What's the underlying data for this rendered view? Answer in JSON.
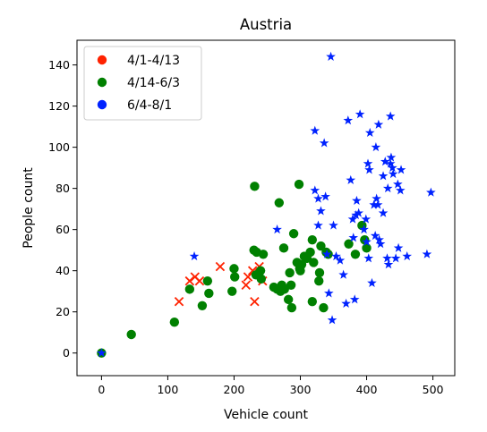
{
  "chart_data": {
    "type": "scatter",
    "title": "Austria",
    "xlabel": "Vehicle count",
    "ylabel": "People count",
    "xlim": [
      -37,
      533
    ],
    "ylim": [
      -11,
      152
    ],
    "xticks": [
      0,
      100,
      200,
      300,
      400,
      500
    ],
    "yticks": [
      0,
      20,
      40,
      60,
      80,
      100,
      120,
      140
    ],
    "grid": false,
    "legend_position": "top-left",
    "series": [
      {
        "name": "4/1-4/13",
        "color": "#ff2200",
        "marker": "x",
        "legend_marker": "circle",
        "points": [
          [
            117,
            25
          ],
          [
            133,
            35
          ],
          [
            141,
            37
          ],
          [
            148,
            35
          ],
          [
            179,
            42
          ],
          [
            218,
            33
          ],
          [
            221,
            37
          ],
          [
            228,
            40
          ],
          [
            231,
            25
          ],
          [
            238,
            42
          ],
          [
            243,
            35
          ]
        ]
      },
      {
        "name": "4/14-6/3",
        "color": "#008000",
        "marker": "circle",
        "legend_marker": "circle",
        "points": [
          [
            0,
            0
          ],
          [
            45,
            9
          ],
          [
            110,
            15
          ],
          [
            133,
            31
          ],
          [
            152,
            23
          ],
          [
            160,
            35
          ],
          [
            162,
            29
          ],
          [
            197,
            30
          ],
          [
            200,
            41
          ],
          [
            201,
            37
          ],
          [
            230,
            50
          ],
          [
            231,
            81
          ],
          [
            233,
            38
          ],
          [
            234,
            49
          ],
          [
            240,
            40
          ],
          [
            241,
            36
          ],
          [
            244,
            48
          ],
          [
            260,
            32
          ],
          [
            265,
            31
          ],
          [
            268,
            73
          ],
          [
            270,
            30
          ],
          [
            272,
            33
          ],
          [
            275,
            51
          ],
          [
            276,
            31
          ],
          [
            282,
            26
          ],
          [
            284,
            39
          ],
          [
            286,
            33
          ],
          [
            287,
            22
          ],
          [
            290,
            58
          ],
          [
            295,
            44
          ],
          [
            298,
            82
          ],
          [
            299,
            41
          ],
          [
            300,
            40
          ],
          [
            302,
            43
          ],
          [
            306,
            47
          ],
          [
            310,
            46
          ],
          [
            315,
            49
          ],
          [
            318,
            25
          ],
          [
            318,
            55
          ],
          [
            320,
            44
          ],
          [
            328,
            35
          ],
          [
            329,
            39
          ],
          [
            331,
            52
          ],
          [
            335,
            22
          ],
          [
            339,
            49
          ],
          [
            342,
            48
          ],
          [
            373,
            53
          ],
          [
            383,
            48
          ],
          [
            393,
            62
          ],
          [
            397,
            55
          ],
          [
            400,
            51
          ]
        ]
      },
      {
        "name": "6/4-8/1",
        "color": "#0022ff",
        "marker": "star",
        "legend_marker": "circle",
        "points": [
          [
            0,
            0
          ],
          [
            140,
            47
          ],
          [
            265,
            60
          ],
          [
            322,
            108
          ],
          [
            322,
            79
          ],
          [
            327,
            75
          ],
          [
            327,
            62
          ],
          [
            331,
            69
          ],
          [
            336,
            102
          ],
          [
            338,
            76
          ],
          [
            340,
            48
          ],
          [
            343,
            29
          ],
          [
            346,
            144
          ],
          [
            348,
            16
          ],
          [
            350,
            62
          ],
          [
            354,
            47
          ],
          [
            360,
            45
          ],
          [
            365,
            38
          ],
          [
            369,
            24
          ],
          [
            372,
            113
          ],
          [
            376,
            84
          ],
          [
            379,
            65
          ],
          [
            380,
            56
          ],
          [
            382,
            26
          ],
          [
            384,
            67
          ],
          [
            385,
            74
          ],
          [
            388,
            68
          ],
          [
            390,
            116
          ],
          [
            396,
            60
          ],
          [
            399,
            65
          ],
          [
            400,
            54
          ],
          [
            402,
            92
          ],
          [
            403,
            46
          ],
          [
            404,
            89
          ],
          [
            405,
            107
          ],
          [
            408,
            34
          ],
          [
            411,
            72
          ],
          [
            413,
            57
          ],
          [
            414,
            100
          ],
          [
            415,
            75
          ],
          [
            417,
            72
          ],
          [
            418,
            111
          ],
          [
            419,
            55
          ],
          [
            421,
            53
          ],
          [
            425,
            86
          ],
          [
            425,
            68
          ],
          [
            428,
            93
          ],
          [
            431,
            46
          ],
          [
            432,
            80
          ],
          [
            433,
            43
          ],
          [
            436,
            115
          ],
          [
            436,
            92
          ],
          [
            437,
            95
          ],
          [
            439,
            90
          ],
          [
            440,
            87
          ],
          [
            444,
            46
          ],
          [
            447,
            82
          ],
          [
            448,
            51
          ],
          [
            451,
            79
          ],
          [
            452,
            89
          ],
          [
            461,
            47
          ],
          [
            491,
            48
          ],
          [
            497,
            78
          ]
        ]
      }
    ]
  }
}
